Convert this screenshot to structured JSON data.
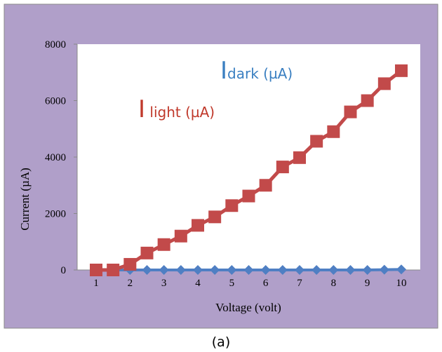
{
  "caption": "(a)",
  "chart_data": {
    "type": "line",
    "xlabel": "Voltage (volt)",
    "ylabel": "Current (µA)",
    "xlim": [
      1,
      10
    ],
    "ylim": [
      0,
      8000
    ],
    "x_ticks": [
      1,
      2,
      3,
      4,
      5,
      6,
      7,
      8,
      9,
      10
    ],
    "y_ticks": [
      0,
      2000,
      4000,
      6000,
      8000
    ],
    "x": [
      1,
      1.5,
      2,
      2.5,
      3,
      3.5,
      4,
      4.5,
      5,
      5.5,
      6,
      6.5,
      7,
      7.5,
      8,
      8.5,
      9,
      9.5,
      10
    ],
    "grid": false,
    "background_color": "#b09fc9",
    "plot_background_color": "#ffffff",
    "legend": [
      {
        "prefix": "I",
        "text": "dark (µA)",
        "color": "#3a7fc1"
      },
      {
        "prefix": "I",
        "text": " light (µA)",
        "color": "#c0392b"
      }
    ],
    "series": [
      {
        "marker": "diamond",
        "color": "#4f7fc3",
        "values": [
          0,
          0,
          0,
          0,
          0,
          0,
          0,
          0,
          0,
          0,
          0,
          0,
          0,
          0,
          0,
          0,
          0,
          10,
          20
        ]
      },
      {
        "marker": "square",
        "color": "#c24a4a",
        "values": [
          0,
          0,
          200,
          600,
          900,
          1200,
          1580,
          1880,
          2280,
          2620,
          3000,
          3650,
          3980,
          4560,
          4900,
          5600,
          6000,
          6600,
          7060
        ]
      }
    ]
  }
}
